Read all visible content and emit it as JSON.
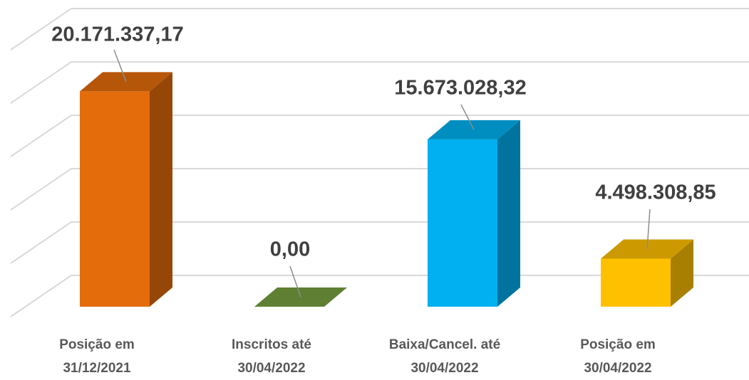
{
  "chart_data": {
    "type": "bar3d",
    "categories": [
      "Posição em\n31/12/2021",
      "Inscritos até\n30/04/2022",
      "Baixa/Cancel. até\n30/04/2022",
      "Posição em\n30/04/2022"
    ],
    "values": [
      20171337.17,
      0,
      15673028.32,
      4498308.85
    ],
    "value_labels": [
      "20.171.337,17",
      "0,00",
      "15.673.028,32",
      "4.498.308,85"
    ],
    "colors": [
      "#e46c0a",
      "#77a03f",
      "#00b0f0",
      "#ffc000"
    ],
    "ylim": [
      0,
      25000000
    ],
    "yticks": [
      0,
      5000000,
      10000000,
      15000000,
      20000000,
      25000000
    ],
    "grid": true
  }
}
